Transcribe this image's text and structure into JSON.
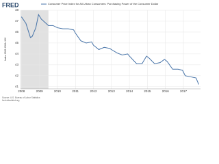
{
  "logo": "FRED",
  "chart_data": {
    "type": "line",
    "y_label": "Index 1982-1984=100",
    "x": [
      2008.0,
      2008.25,
      2008.5,
      2008.6,
      2008.8,
      2008.95,
      2009.1,
      2009.3,
      2009.5,
      2009.75,
      2010.0,
      2010.3,
      2010.6,
      2010.9,
      2011.0,
      2011.3,
      2011.6,
      2011.9,
      2012.0,
      2012.3,
      2012.6,
      2012.9,
      2013.0,
      2013.3,
      2013.6,
      2013.9,
      2014.0,
      2014.4,
      2014.7,
      2014.95,
      2015.1,
      2015.4,
      2015.7,
      2015.95,
      2016.1,
      2016.4,
      2016.7,
      2016.95,
      2017.1,
      2017.4,
      2017.7,
      2017.85
    ],
    "series": [
      {
        "name": "Consumer Price Index for All Urban Consumers: Purchasing Power of the Consumer Dollar",
        "color": "#4572a7",
        "values": [
          47.4,
          46.8,
          45.5,
          45.6,
          46.4,
          47.6,
          47.2,
          46.9,
          46.6,
          46.6,
          46.4,
          46.3,
          46.3,
          46.2,
          45.9,
          45.2,
          45.0,
          45.1,
          44.8,
          44.4,
          44.6,
          44.5,
          44.4,
          44.1,
          43.9,
          44.0,
          43.8,
          43.1,
          43.1,
          43.8,
          43.6,
          43.1,
          43.2,
          43.5,
          43.3,
          42.6,
          42.6,
          42.5,
          42.0,
          41.9,
          41.8,
          41.2
        ]
      }
    ],
    "shaded_x": [
      2007.95,
      2009.5
    ],
    "xlim": [
      2007.95,
      2017.95
    ],
    "xticks": [
      2008,
      2009,
      2010,
      2011,
      2012,
      2013,
      2014,
      2015,
      2016,
      2017
    ],
    "ylim": [
      40.8,
      48
    ],
    "yticks": [
      41,
      42,
      43,
      44,
      45,
      46,
      47,
      48
    ],
    "grid": true,
    "source": "Source: U.S. Bureau of Labor Statistics",
    "url": "fred.stlouisfed.org"
  }
}
